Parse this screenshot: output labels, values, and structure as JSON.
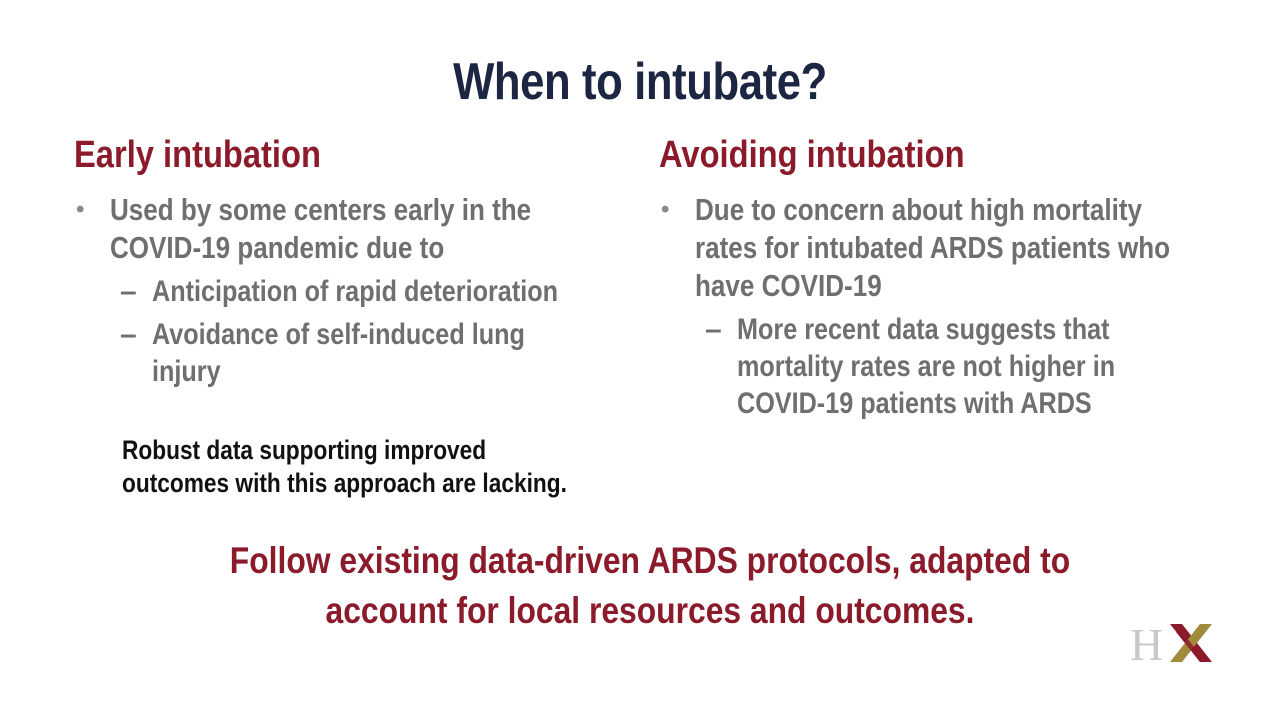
{
  "slide": {
    "title": "When to intubate?",
    "left": {
      "heading": "Early intubation",
      "bullet": "Used by some centers early in the COVID-19 pandemic due to",
      "subitems": [
        "Anticipation of rapid deterioration",
        "Avoidance of self-induced lung injury"
      ],
      "note": "Robust data supporting improved outcomes with this approach are lacking."
    },
    "right": {
      "heading": "Avoiding intubation",
      "bullet": "Due to concern about high mortality rates for intubated ARDS patients who have COVID-19",
      "subitems": [
        "More recent data suggests that mortality rates are not higher in COVID-19 patients with ARDS"
      ]
    },
    "conclusion": "Follow existing data-driven ARDS protocols, adapted to account for local resources and outcomes.",
    "logo": {
      "text": "HX",
      "colors": {
        "h": "#c8c8c8",
        "x_primary": "#8b1a2b",
        "x_secondary": "#a08a3c"
      }
    },
    "colors": {
      "title": "#1c2541",
      "accent": "#8b1a2b",
      "body": "#6f6f6f",
      "note": "#111111"
    }
  }
}
